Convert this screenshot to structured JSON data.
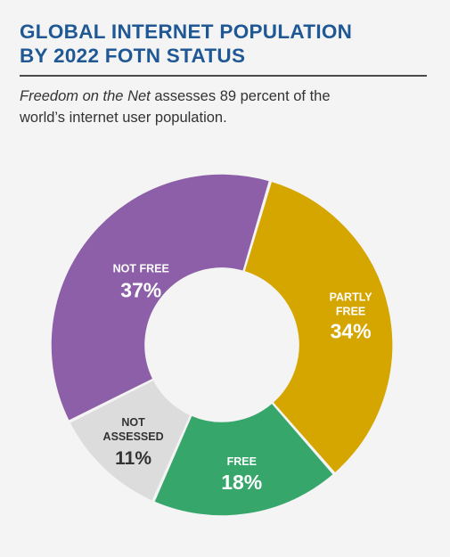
{
  "chart_data": {
    "type": "pie",
    "title_lines": [
      "GLOBAL INTERNET POPULATION",
      "BY 2022 FOTN STATUS"
    ],
    "subtitle": {
      "italic": "Freedom on the Net",
      "rest_line1": " assesses 89 percent of the",
      "line2": "world’s internet user population."
    },
    "slices": [
      {
        "label_lines": [
          "PARTLY",
          "FREE"
        ],
        "value_text": "34%",
        "value": 34,
        "color": "#d5a600"
      },
      {
        "label_lines": [
          "FREE"
        ],
        "value_text": "18%",
        "value": 18,
        "color": "#36a66b"
      },
      {
        "label_lines": [
          "NOT",
          "ASSESSED"
        ],
        "value_text": "11%",
        "value": 11,
        "color": "#dcdcdc"
      },
      {
        "label_lines": [
          "NOT FREE"
        ],
        "value_text": "37%",
        "value": 37,
        "color": "#8c5fa8"
      }
    ]
  }
}
